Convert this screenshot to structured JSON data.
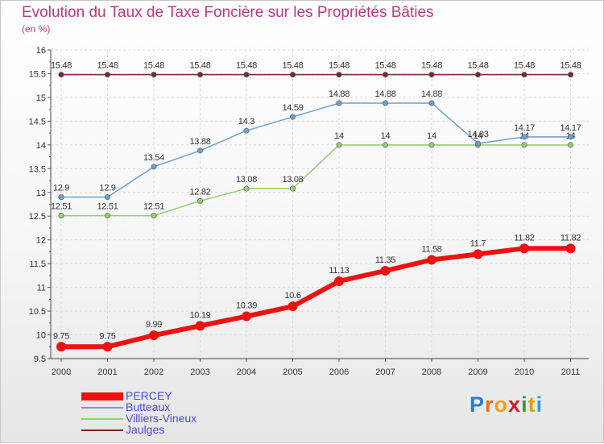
{
  "title": "Evolution du Taux de Taxe Foncière sur les Propriétés Bâties",
  "unit_label": "(en %)",
  "logo": {
    "letters": [
      "P",
      "r",
      "o",
      "x",
      "i",
      "t",
      "i"
    ],
    "colors": [
      "#2a7fd0",
      "#e07020",
      "#f0a020",
      "#d02020",
      "#30a030",
      "#e0a010",
      "#30a0d0"
    ]
  },
  "chart_data": {
    "type": "line",
    "title": "Evolution du Taux de Taxe Foncière sur les Propriétés Bâties",
    "ylabel": "(en %)",
    "xlabel": "",
    "x": [
      "2000",
      "2001",
      "2002",
      "2003",
      "2004",
      "2005",
      "2006",
      "2007",
      "2008",
      "2009",
      "2010",
      "2011"
    ],
    "ylim": [
      9.5,
      16
    ],
    "yticks": [
      "9.5",
      "10",
      "10.5",
      "11",
      "11.5",
      "12",
      "12.5",
      "13",
      "13.5",
      "14",
      "14.5",
      "15",
      "15.5",
      "16"
    ],
    "grid": true,
    "legend_position": "bottom-left",
    "series": [
      {
        "name": "Jaulges",
        "color": "#7a2a2a",
        "values": [
          15.48,
          15.48,
          15.48,
          15.48,
          15.48,
          15.48,
          15.48,
          15.48,
          15.48,
          15.48,
          15.48,
          15.48
        ],
        "labels": [
          "15.48",
          "15.48",
          "15.48",
          "15.48",
          "15.48",
          "15.48",
          "15.48",
          "15.48",
          "15.48",
          "15.48",
          "15.48",
          "15.48"
        ]
      },
      {
        "name": "Villiers-Vineux",
        "color": "#90d070",
        "values": [
          12.51,
          12.51,
          12.51,
          12.82,
          13.08,
          13.08,
          14,
          14,
          14,
          14,
          14,
          14
        ],
        "labels": [
          "12.51",
          "12.51",
          "12.51",
          "12.82",
          "13.08",
          "13.08",
          "14",
          "14",
          "14",
          "14",
          "14",
          "14"
        ]
      },
      {
        "name": "Butteaux",
        "color": "#6aa0d0",
        "values": [
          12.9,
          12.9,
          13.54,
          13.88,
          14.3,
          14.59,
          14.88,
          14.88,
          14.88,
          14.03,
          14.17,
          14.17
        ],
        "labels": [
          "12.9",
          "12.9",
          "13.54",
          "13.88",
          "14.3",
          "14.59",
          "14.88",
          "14.88",
          "14.88",
          "14.03",
          "14.17",
          "14.17"
        ]
      },
      {
        "name": "PERCEY",
        "color": "#ee1111",
        "values": [
          9.75,
          9.75,
          9.99,
          10.19,
          10.39,
          10.6,
          11.13,
          11.35,
          11.58,
          11.7,
          11.82,
          11.82
        ],
        "labels": [
          "9.75",
          "9.75",
          "9.99",
          "10.19",
          "10.39",
          "10.6",
          "11.13",
          "11.35",
          "11.58",
          "11.7",
          "11.82",
          "11.82"
        ]
      }
    ]
  },
  "legend": [
    {
      "name": "PERCEY",
      "color": "#ee1111"
    },
    {
      "name": "Butteaux",
      "color": "#6aa0d0"
    },
    {
      "name": "Villiers-Vineux",
      "color": "#90d070"
    },
    {
      "name": "Jaulges",
      "color": "#7a2a2a"
    }
  ]
}
